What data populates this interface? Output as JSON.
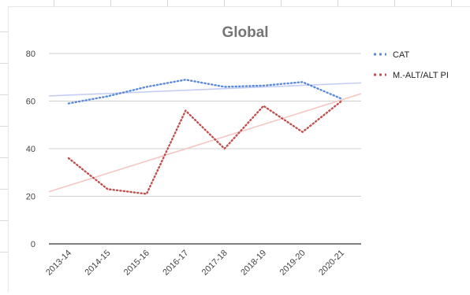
{
  "chart_data": {
    "type": "line",
    "title": "Global",
    "xlabel": "",
    "ylabel": "",
    "ylim": [
      0,
      80
    ],
    "yticks": [
      0,
      20,
      40,
      60,
      80
    ],
    "categories": [
      "2013-14",
      "2014-15",
      "2015-16",
      "2016-17",
      "2017-18",
      "2018-19",
      "2019-20",
      "2020-21"
    ],
    "series": [
      {
        "name": "CAT",
        "color": "#5b8ad9",
        "trend_color": "#c5cdf5",
        "style": "dotted",
        "values": [
          59,
          62,
          66,
          69,
          66,
          66.5,
          68,
          61
        ],
        "trendline": [
          62.5,
          67.3
        ]
      },
      {
        "name": "M.-ALT/ALT PI",
        "color": "#c0504d",
        "trend_color": "#f4c7c3",
        "style": "dotted",
        "values": [
          36,
          23,
          21,
          56,
          40,
          58,
          47,
          60
        ],
        "trendline": [
          24.5,
          60.5
        ]
      }
    ],
    "grid": true,
    "legend_position": "right"
  }
}
